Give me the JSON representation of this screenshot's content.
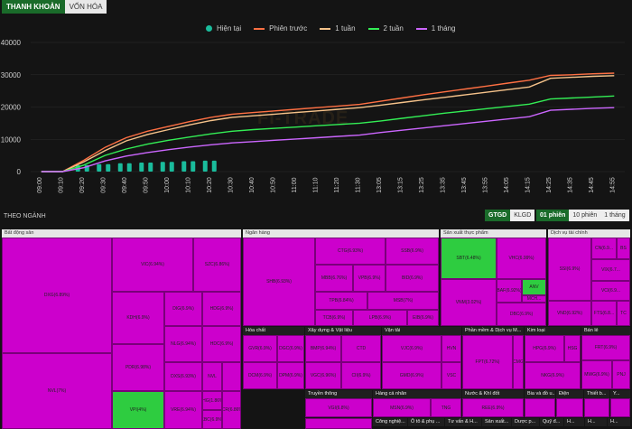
{
  "tabs": [
    {
      "label": "THANH KHOẢN",
      "active": true
    },
    {
      "label": "VỐN HÓA",
      "active": false
    }
  ],
  "legend": [
    {
      "label": "Hiện tại",
      "color": "#1abc9c",
      "kind": "dot"
    },
    {
      "label": "Phiên trước",
      "color": "#ff7043",
      "kind": "line"
    },
    {
      "label": "1 tuần",
      "color": "#f5c28a",
      "kind": "line"
    },
    {
      "label": "2 tuần",
      "color": "#33ee55",
      "kind": "line"
    },
    {
      "label": "1 tháng",
      "color": "#cc66ff",
      "kind": "line"
    }
  ],
  "chart_data": {
    "type": "line",
    "title": "",
    "categories": [
      "09:00",
      "09:10",
      "09:20",
      "09:30",
      "09:40",
      "09:50",
      "10:00",
      "10:10",
      "10:20",
      "10:30",
      "10:40",
      "10:50",
      "11:00",
      "11:10",
      "11:20",
      "11:30",
      "13:05",
      "13:15",
      "13:25",
      "13:35",
      "13:45",
      "13:55",
      "14:05",
      "14:15",
      "14:25",
      "14:35",
      "14:45",
      "14:55"
    ],
    "ylim": [
      0,
      40000
    ],
    "yticks": [
      0,
      10000,
      20000,
      30000,
      40000
    ],
    "series": [
      {
        "name": "Phiên trước",
        "color": "#ff7043",
        "values": [
          0,
          0,
          3500,
          7500,
          10500,
          12500,
          14000,
          15500,
          16800,
          17800,
          18300,
          18800,
          19300,
          19800,
          20300,
          20800,
          21800,
          22800,
          23800,
          24700,
          25600,
          26500,
          27400,
          28300,
          29800,
          30000,
          30300,
          30500
        ]
      },
      {
        "name": "1 tuần",
        "color": "#f5c28a",
        "values": [
          0,
          0,
          3000,
          6500,
          9500,
          11500,
          13000,
          14500,
          15800,
          16800,
          17300,
          17800,
          18300,
          18800,
          19300,
          19800,
          20600,
          21400,
          22200,
          23000,
          23800,
          24600,
          25400,
          26200,
          28900,
          29200,
          29500,
          29700
        ]
      },
      {
        "name": "2 tuần",
        "color": "#33ee55",
        "values": [
          0,
          0,
          2000,
          5000,
          7000,
          8500,
          9700,
          10700,
          11700,
          12500,
          13000,
          13400,
          13800,
          14200,
          14600,
          15000,
          15700,
          16500,
          17300,
          18100,
          18800,
          19500,
          20200,
          20900,
          22500,
          22800,
          23100,
          23400
        ]
      },
      {
        "name": "1 tháng",
        "color": "#cc66ff",
        "values": [
          0,
          0,
          1200,
          3300,
          4800,
          5900,
          6800,
          7600,
          8300,
          8900,
          9300,
          9700,
          10100,
          10500,
          10900,
          11300,
          12100,
          12800,
          13500,
          14200,
          14900,
          15600,
          16300,
          17000,
          19000,
          19300,
          19600,
          19800
        ]
      },
      {
        "name": "Hiện tại",
        "color": "#1abc9c",
        "values": [
          0,
          0,
          2000,
          2300,
          2600,
          2800,
          3000,
          3200,
          3400,
          null,
          null,
          null,
          null,
          null,
          null,
          null,
          null,
          null,
          null,
          null,
          null,
          null,
          null,
          null,
          null,
          null,
          null,
          null
        ]
      }
    ]
  },
  "watermark": "FI-TRADE",
  "sector": {
    "title": "THEO NGÀNH",
    "metric_options": [
      {
        "label": "GTGD",
        "active": true
      },
      {
        "label": "KLGD",
        "active": false
      }
    ],
    "period_options": [
      {
        "label": "01 phiên",
        "active": true
      },
      {
        "label": "10 phiên",
        "active": false
      },
      {
        "label": "1 tháng",
        "active": false
      }
    ]
  },
  "treemap": {
    "headers": {
      "bds": "Bất động sản",
      "nh": "Ngân hàng",
      "sx": "Sản xuất thực phẩm",
      "dv": "Dịch vụ tài chính",
      "hc": "Hóa chất",
      "xd": "Xây dựng & Vật liệu",
      "vt": "Vận tải",
      "pm": "Phần mềm & Dịch vụ M...",
      "kl": "Kim loại",
      "bl": "Bán lẻ",
      "tt": "Truyền thông",
      "hcn": "Hàng cá nhân",
      "nk": "Nước & Khí đốt",
      "bia": "Bia và đồ u...",
      "dien": "Điện",
      "tb": "Thiết b...",
      "ytt": "Y...",
      "cn": "Công nghiệ...",
      "oto": "Ô tô & phụ ...",
      "tv": "Tư vấn & H...",
      "sx2": "Sản xuất...",
      "dp": "Dược p...",
      "qd": "Quỹ đ...",
      "h1": "H...",
      "h2": "H...",
      "h3": "H..."
    },
    "labels": {
      "dxg": "DXG(6.89%)",
      "nvl": "NVL(7%)",
      "vic": "VIC(6.94%)",
      "szc": "SZC(6.86%)",
      "kdh": "KDH(6.9%)",
      "dig": "DIG(6.9%)",
      "hdg": "HDG(6.9%)",
      "nlg": "NLG(6.94%)",
      "hdc": "HDC(6.9%)",
      "pdr": "PDR(6.98%)",
      "dxs": "DXS(6.93%)",
      "nvl2": "NVL",
      "vpi": "VPI(4%)",
      "vre": "VRE(6.94%)",
      "khg": "KHG(1.86%)",
      "scr": "SCR(6.86%)",
      "kbc": "KBC(6.9%)",
      "shb": "SHB(6.93%)",
      "ctg": "CTG(6.93%)",
      "ssb": "SSB(6.9%)",
      "mbb": "MBB(6.76%)",
      "vpb": "VPB(6.9%)",
      "bid": "BID(6.9%)",
      "tpb": "TPB(6.84%)",
      "msb": "MSB(7%)",
      "tcb": "TCB(6.9%)",
      "lpb": "LPB(6.9%)",
      "eib": "EIB(6.9%)",
      "sbt": "SBT(6.48%)",
      "vhc": "VHC(6.99%)",
      "vnm": "VNM(3.02%)",
      "baf": "BAF(6.92%)",
      "dbc": "DBC(6.9%)",
      "anv": "ANV",
      "mch": "MCH...",
      "ssi": "SSI(6.9%)",
      "cn": "CN(6.9...",
      "vix": "VIX(6.7...",
      "bs": "BS",
      "vci": "VCI(6.9...",
      "vnd": "VND(6.92%)",
      "ftsg": "FTS(6.8...",
      "tc": "TC",
      "gvr": "GVR(6.9%)",
      "dgc": "DGC(6.9%)",
      "dcm": "DCM(6.9%)",
      "dpm": "DPM(6.9%)",
      "vgc": "VGC",
      "dgw": "DGW",
      "bmp": "BMP(6.94%)",
      "vgc2": "VGC(6.96%)",
      "hhv": "HHV",
      "ctd": "CTD",
      "cii": "CII(6.9%)",
      "hvn": "HVN",
      "gmd": "GMD(6.9%)",
      "vjc": "VJC(6.9%)",
      "vsc": "VSC",
      "fpt": "FPT(6.72%)",
      "cmg": "CMG",
      "hpg": "HPG(6.9%)",
      "nkg": "NKG(6.9%)",
      "hsg": "HSG",
      "frt": "FRT(6.9%)",
      "mwg": "MWG(6.9%)",
      "pnj": "PNJ",
      "vgi": "VGI(6.8%)",
      "tng": "TNG",
      "msn": "MSN(6.9%)",
      "ree": "REE(6.9%)"
    }
  }
}
